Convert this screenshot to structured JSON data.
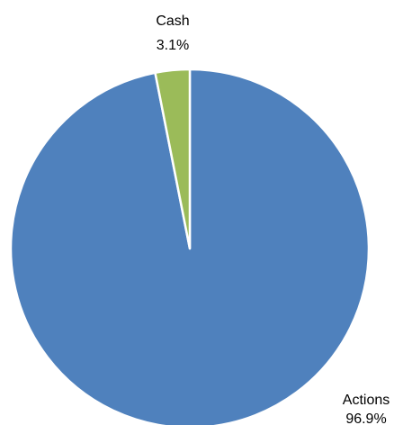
{
  "chart_data": {
    "type": "pie",
    "title": "",
    "slices": [
      {
        "label": "Actions",
        "value": 96.9,
        "value_label": "96.9%",
        "color": "#4f81bd"
      },
      {
        "label": "Cash",
        "value": 3.1,
        "value_label": "3.1%",
        "color": "#9bbb59"
      }
    ],
    "start_angle_deg": 0,
    "direction": "clockwise",
    "slice_border_color": "#ffffff",
    "legend": "none"
  }
}
